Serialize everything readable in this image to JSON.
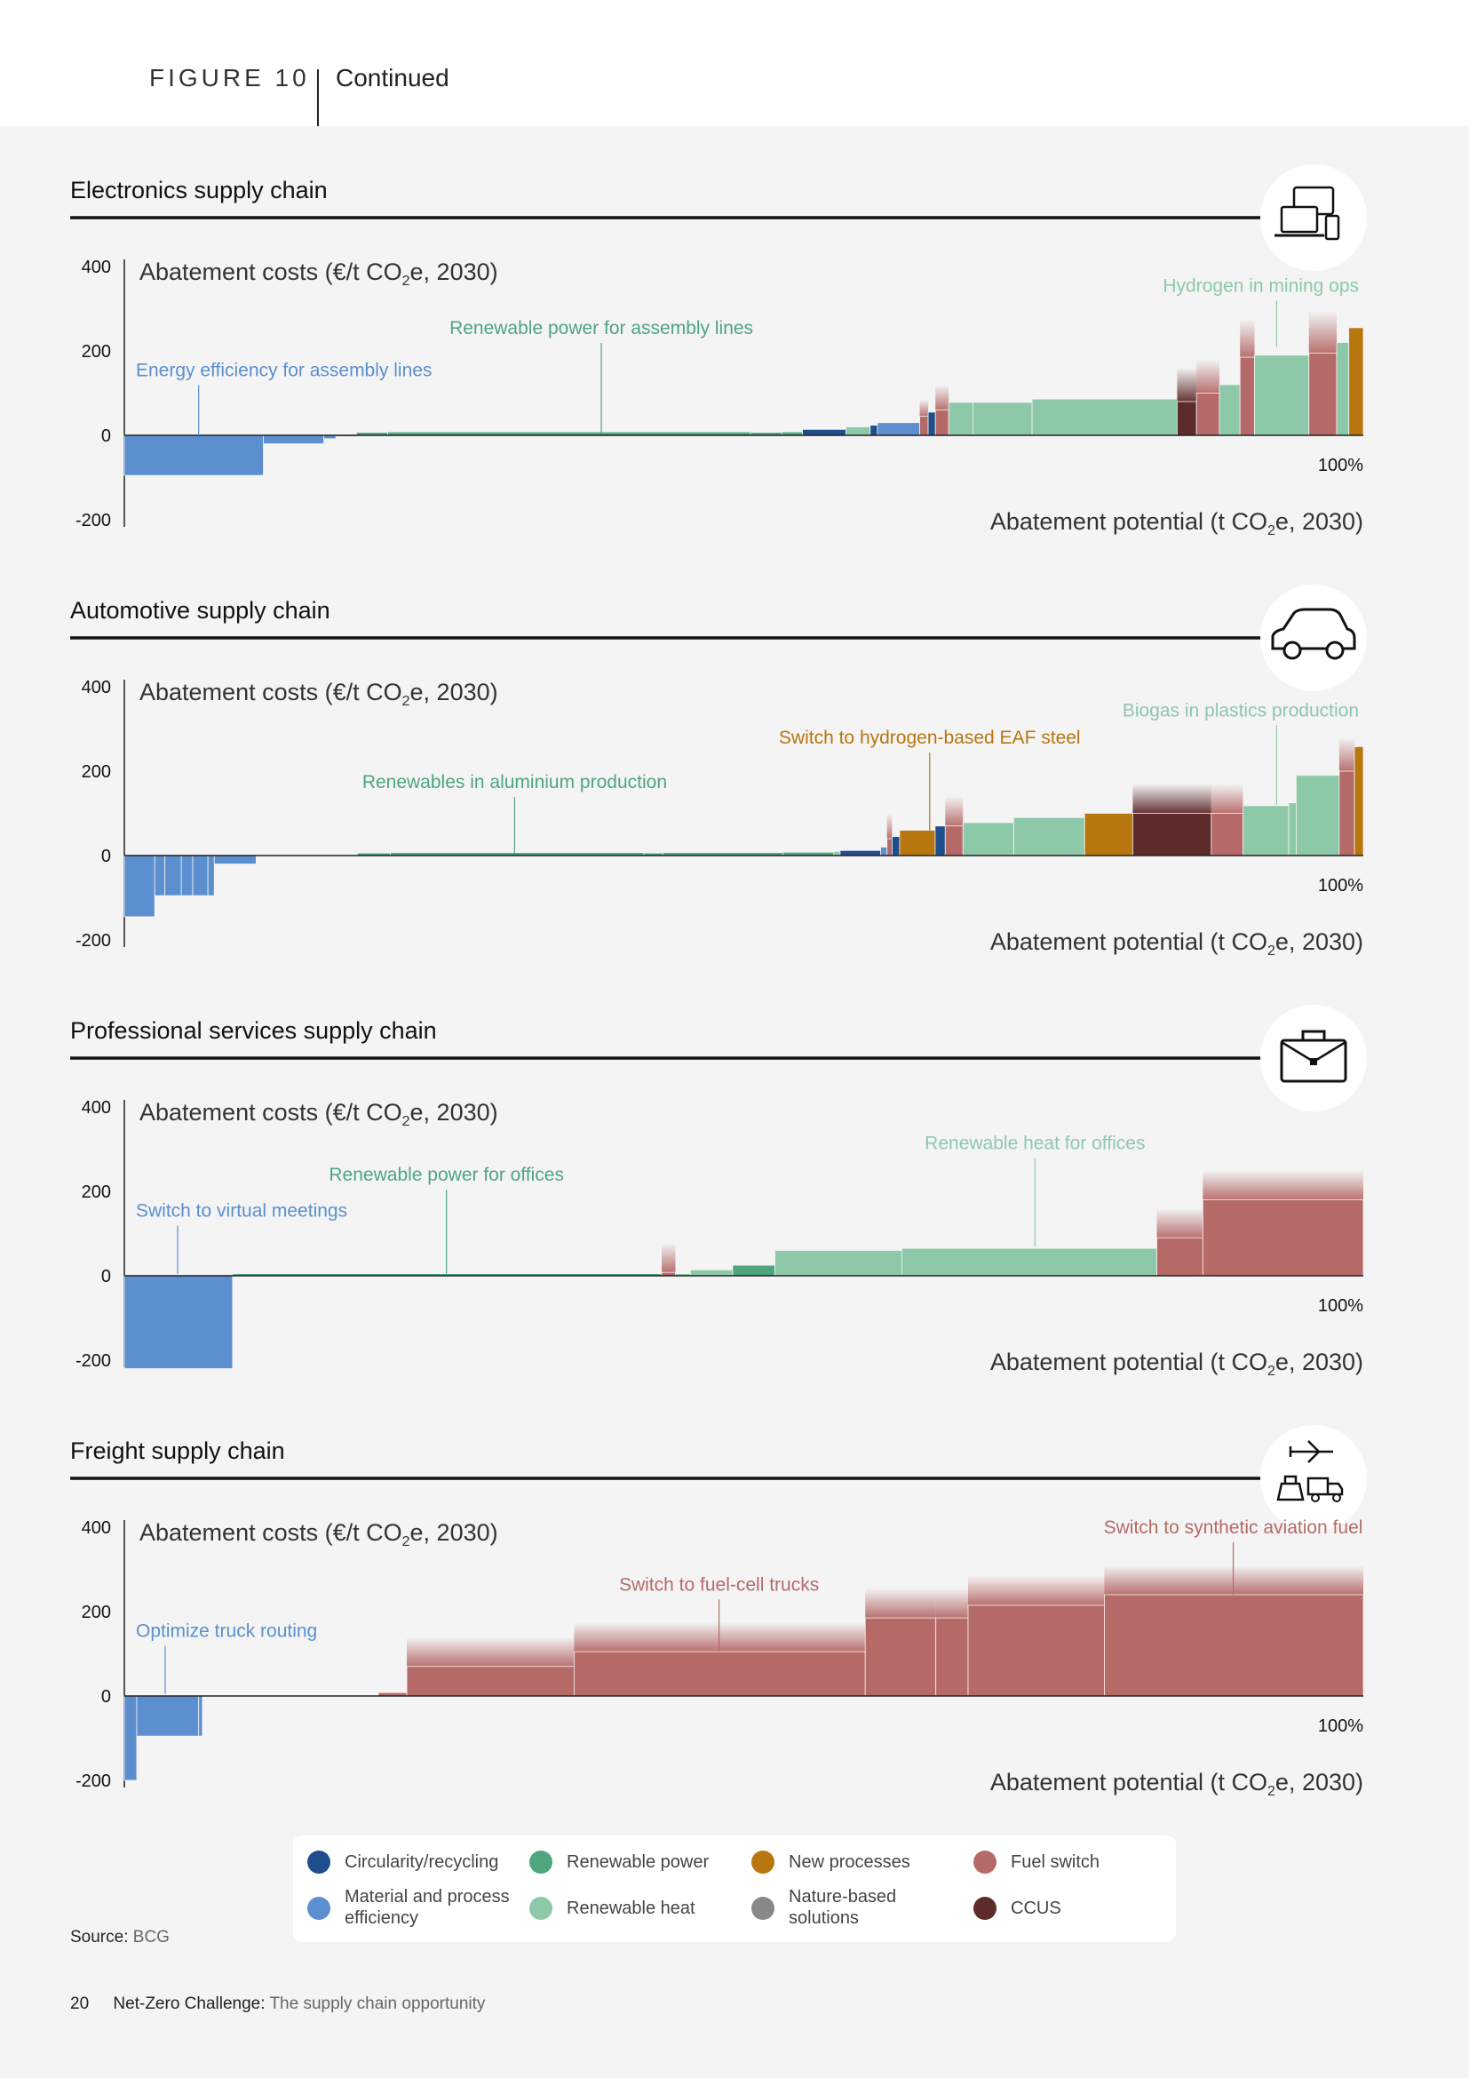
{
  "header": {
    "figure_label": "FIGURE 10",
    "continued": "Continued"
  },
  "axis_text": {
    "ylabel_prefix": "Abatement costs (€/t CO",
    "ylabel_sub": "2",
    "ylabel_suffix": "e, 2030)",
    "xlabel_prefix": "Abatement potential (t CO",
    "xlabel_sub": "2",
    "xlabel_suffix": "e, 2030)",
    "y_ticks": [
      "400",
      "200",
      "0",
      "-200"
    ],
    "x_end_label": "100%"
  },
  "colors": {
    "circularity": "#1f4e8c",
    "efficiency": "#5b8fd0",
    "renewable_power": "#4ea57e",
    "renewable_heat": "#8dc9a8",
    "new_processes": "#b8760f",
    "nature": "#888888",
    "fuel_switch": "#b56a68",
    "ccus": "#5e2b2b"
  },
  "chart_data": [
    {
      "type": "bar",
      "title": "Electronics supply chain",
      "icon": "devices-icon",
      "xlabel": "Abatement potential (t CO2e, 2030)",
      "ylabel": "Abatement costs (€/t CO2e, 2030)",
      "ylim": [
        -200,
        400
      ],
      "x_unit": "percent of abatement potential",
      "annotations": [
        {
          "text": "Energy efficiency for assembly lines",
          "x": 6,
          "y": 0,
          "label_y": 140,
          "color": "efficiency"
        },
        {
          "text": "Renewable power for assembly lines",
          "x": 38.5,
          "y": 5,
          "label_y": 240,
          "color": "renewable_power"
        },
        {
          "text": "Hydrogen in mining ops",
          "x": 93,
          "y": 210,
          "label_y": 340,
          "color": "renewable_heat"
        }
      ],
      "bars": [
        {
          "w": 11.5,
          "v": -95,
          "c": "efficiency"
        },
        {
          "w": 5,
          "v": -20,
          "c": "efficiency"
        },
        {
          "w": 1,
          "v": -8,
          "c": "efficiency"
        },
        {
          "w": 1.7,
          "v": -3,
          "c": "efficiency"
        },
        {
          "w": 2.6,
          "v": 7,
          "c": "renewable_power"
        },
        {
          "w": 30,
          "v": 8,
          "c": "renewable_power"
        },
        {
          "w": 2.6,
          "v": 7,
          "c": "renewable_power"
        },
        {
          "w": 1.7,
          "v": 8,
          "c": "renewable_power"
        },
        {
          "w": 3.6,
          "v": 14,
          "c": "circularity"
        },
        {
          "w": 2,
          "v": 20,
          "c": "renewable_heat"
        },
        {
          "w": 0.6,
          "v": 24,
          "c": "circularity"
        },
        {
          "w": 3.5,
          "v": 30,
          "c": "efficiency"
        },
        {
          "w": 0.7,
          "v": 45,
          "c": "fuel_switch",
          "fade": 40
        },
        {
          "w": 0.6,
          "v": 55,
          "c": "circularity"
        },
        {
          "w": 1.1,
          "v": 60,
          "c": "fuel_switch",
          "fade": 60
        },
        {
          "w": 2,
          "v": 78,
          "c": "renewable_heat"
        },
        {
          "w": 4.9,
          "v": 78,
          "c": "renewable_heat"
        },
        {
          "w": 12,
          "v": 86,
          "c": "renewable_heat"
        },
        {
          "w": 1.6,
          "v": 80,
          "c": "ccus",
          "fade": 80
        },
        {
          "w": 1.9,
          "v": 100,
          "c": "fuel_switch",
          "fade": 80
        },
        {
          "w": 1.7,
          "v": 120,
          "c": "renewable_heat"
        },
        {
          "w": 1.2,
          "v": 185,
          "c": "fuel_switch",
          "fade": 90
        },
        {
          "w": 4.5,
          "v": 190,
          "c": "renewable_heat"
        },
        {
          "w": 2.3,
          "v": 195,
          "c": "fuel_switch",
          "fade": 100
        },
        {
          "w": 1,
          "v": 220,
          "c": "renewable_heat"
        },
        {
          "w": 1.2,
          "v": 255,
          "c": "new_processes"
        }
      ]
    },
    {
      "type": "bar",
      "title": "Automotive supply chain",
      "icon": "car-icon",
      "xlabel": "Abatement potential (t CO2e, 2030)",
      "ylabel": "Abatement costs (€/t CO2e, 2030)",
      "ylim": [
        -200,
        400
      ],
      "x_unit": "percent of abatement potential",
      "annotations": [
        {
          "text": "Renewables in aluminium production",
          "x": 31.5,
          "y": 5,
          "label_y": 160,
          "color": "renewable_power"
        },
        {
          "text": "Switch to hydrogen-based EAF steel",
          "x": 65,
          "y": 60,
          "label_y": 265,
          "color": "new_processes"
        },
        {
          "text": "Biogas in plastics production",
          "x": 93,
          "y": 120,
          "label_y": 330,
          "color": "renewable_heat"
        }
      ],
      "bars": [
        {
          "w": 2.4,
          "v": -145,
          "c": "efficiency"
        },
        {
          "w": 0.8,
          "v": -95,
          "c": "efficiency"
        },
        {
          "w": 1.3,
          "v": -95,
          "c": "efficiency"
        },
        {
          "w": 0.9,
          "v": -95,
          "c": "efficiency"
        },
        {
          "w": 1.2,
          "v": -95,
          "c": "efficiency"
        },
        {
          "w": 0.5,
          "v": -95,
          "c": "efficiency"
        },
        {
          "w": 3.3,
          "v": -20,
          "c": "efficiency"
        },
        {
          "w": 8,
          "v": 0,
          "c": "efficiency"
        },
        {
          "w": 2.6,
          "v": 6,
          "c": "renewable_power"
        },
        {
          "w": 20,
          "v": 7,
          "c": "renewable_power"
        },
        {
          "w": 1.5,
          "v": 6,
          "c": "renewable_power"
        },
        {
          "w": 9.5,
          "v": 7,
          "c": "renewable_power"
        },
        {
          "w": 4,
          "v": 8,
          "c": "renewable_power"
        },
        {
          "w": 0.5,
          "v": 10,
          "c": "renewable_heat"
        },
        {
          "w": 3.2,
          "v": 12,
          "c": "circularity"
        },
        {
          "w": 0.5,
          "v": 20,
          "c": "efficiency"
        },
        {
          "w": 0.4,
          "v": 40,
          "c": "fuel_switch",
          "fade": 60
        },
        {
          "w": 0.6,
          "v": 45,
          "c": "circularity"
        },
        {
          "w": 2.8,
          "v": 60,
          "c": "new_processes"
        },
        {
          "w": 0.8,
          "v": 70,
          "c": "circularity"
        },
        {
          "w": 1.4,
          "v": 70,
          "c": "fuel_switch",
          "fade": 70
        },
        {
          "w": 4,
          "v": 78,
          "c": "renewable_heat"
        },
        {
          "w": 5.6,
          "v": 90,
          "c": "renewable_heat"
        },
        {
          "w": 3.8,
          "v": 100,
          "c": "new_processes"
        },
        {
          "w": 6.2,
          "v": 100,
          "c": "ccus",
          "fade": 70
        },
        {
          "w": 2.5,
          "v": 100,
          "c": "fuel_switch",
          "fade": 70
        },
        {
          "w": 3.6,
          "v": 118,
          "c": "renewable_heat"
        },
        {
          "w": 0.6,
          "v": 125,
          "c": "renewable_heat"
        },
        {
          "w": 3.4,
          "v": 190,
          "c": "renewable_heat"
        },
        {
          "w": 1.2,
          "v": 200,
          "c": "fuel_switch",
          "fade": 80
        },
        {
          "w": 0.7,
          "v": 258,
          "c": "new_processes"
        }
      ]
    },
    {
      "type": "bar",
      "title": "Professional services supply chain",
      "icon": "briefcase-icon",
      "xlabel": "Abatement potential (t CO2e, 2030)",
      "ylabel": "Abatement costs (€/t CO2e, 2030)",
      "ylim": [
        -200,
        400
      ],
      "x_unit": "percent of abatement potential",
      "annotations": [
        {
          "text": "Switch to virtual meetings",
          "x": 4.3,
          "y": 5,
          "label_y": 140,
          "color": "efficiency"
        },
        {
          "text": "Renewable power for offices",
          "x": 26,
          "y": 5,
          "label_y": 225,
          "color": "renewable_power"
        },
        {
          "text": "Renewable heat for offices",
          "x": 73.5,
          "y": 70,
          "label_y": 300,
          "color": "renewable_heat"
        }
      ],
      "bars": [
        {
          "w": 8.7,
          "v": -220,
          "c": "efficiency"
        },
        {
          "w": 34.5,
          "v": 5,
          "c": "renewable_power"
        },
        {
          "w": 1.1,
          "v": 8,
          "c": "fuel_switch",
          "fade": 70
        },
        {
          "w": 1.2,
          "v": 5,
          "c": "renewable_heat"
        },
        {
          "w": 3.4,
          "v": 14,
          "c": "renewable_heat"
        },
        {
          "w": 3.4,
          "v": 25,
          "c": "renewable_power"
        },
        {
          "w": 10.2,
          "v": 60,
          "c": "renewable_heat"
        },
        {
          "w": 20.5,
          "v": 65,
          "c": "renewable_heat"
        },
        {
          "w": 3.7,
          "v": 90,
          "c": "fuel_switch",
          "fade": 70
        },
        {
          "w": 12.9,
          "v": 180,
          "c": "fuel_switch",
          "fade": 70
        }
      ]
    },
    {
      "type": "bar",
      "title": "Freight supply chain",
      "icon": "transport-icon",
      "xlabel": "Abatement potential (t CO2e, 2030)",
      "ylabel": "Abatement costs (€/t CO2e, 2030)",
      "ylim": [
        -200,
        400
      ],
      "x_unit": "percent of abatement potential",
      "annotations": [
        {
          "text": "Optimize truck routing",
          "x": 3.3,
          "y": 5,
          "label_y": 140,
          "color": "efficiency"
        },
        {
          "text": "Switch to fuel-cell trucks",
          "x": 48,
          "y": 105,
          "label_y": 250,
          "color": "fuel_switch"
        },
        {
          "text": "Switch to synthetic aviation fuel",
          "x": 89.5,
          "y": 240,
          "label_y": 385,
          "color": "fuel_switch"
        }
      ],
      "bars": [
        {
          "w": 1,
          "v": -200,
          "c": "efficiency"
        },
        {
          "w": 5,
          "v": -95,
          "c": "efficiency"
        },
        {
          "w": 0.3,
          "v": -95,
          "c": "efficiency"
        },
        {
          "w": 14.2,
          "v": 0,
          "c": "efficiency"
        },
        {
          "w": 2.3,
          "v": 8,
          "c": "fuel_switch"
        },
        {
          "w": 13.5,
          "v": 70,
          "c": "fuel_switch",
          "fade": 70
        },
        {
          "w": 23.5,
          "v": 105,
          "c": "fuel_switch",
          "fade": 70
        },
        {
          "w": 5.7,
          "v": 185,
          "c": "fuel_switch",
          "fade": 70
        },
        {
          "w": 2.6,
          "v": 185,
          "c": "fuel_switch",
          "fade": 70
        },
        {
          "w": 11,
          "v": 215,
          "c": "fuel_switch",
          "fade": 70
        },
        {
          "w": 20.9,
          "v": 240,
          "c": "fuel_switch",
          "fade": 70
        }
      ]
    }
  ],
  "legend": [
    {
      "label": "Circularity/recycling",
      "color": "#1f4e8c"
    },
    {
      "label": "Material and process efficiency",
      "color": "#5b8fd0"
    },
    {
      "label": "Renewable power",
      "color": "#4ea57e"
    },
    {
      "label": "Renewable heat",
      "color": "#8dc9a8"
    },
    {
      "label": "New processes",
      "color": "#b8760f"
    },
    {
      "label": "Nature-based solutions",
      "color": "#888888"
    },
    {
      "label": "Fuel switch",
      "color": "#b56a68"
    },
    {
      "label": "CCUS",
      "color": "#5e2b2b"
    }
  ],
  "source": {
    "label": "Source:",
    "value": "BCG"
  },
  "footer": {
    "page_number": "20",
    "title": "Net-Zero Challenge:",
    "subtitle": "The supply chain opportunity"
  }
}
